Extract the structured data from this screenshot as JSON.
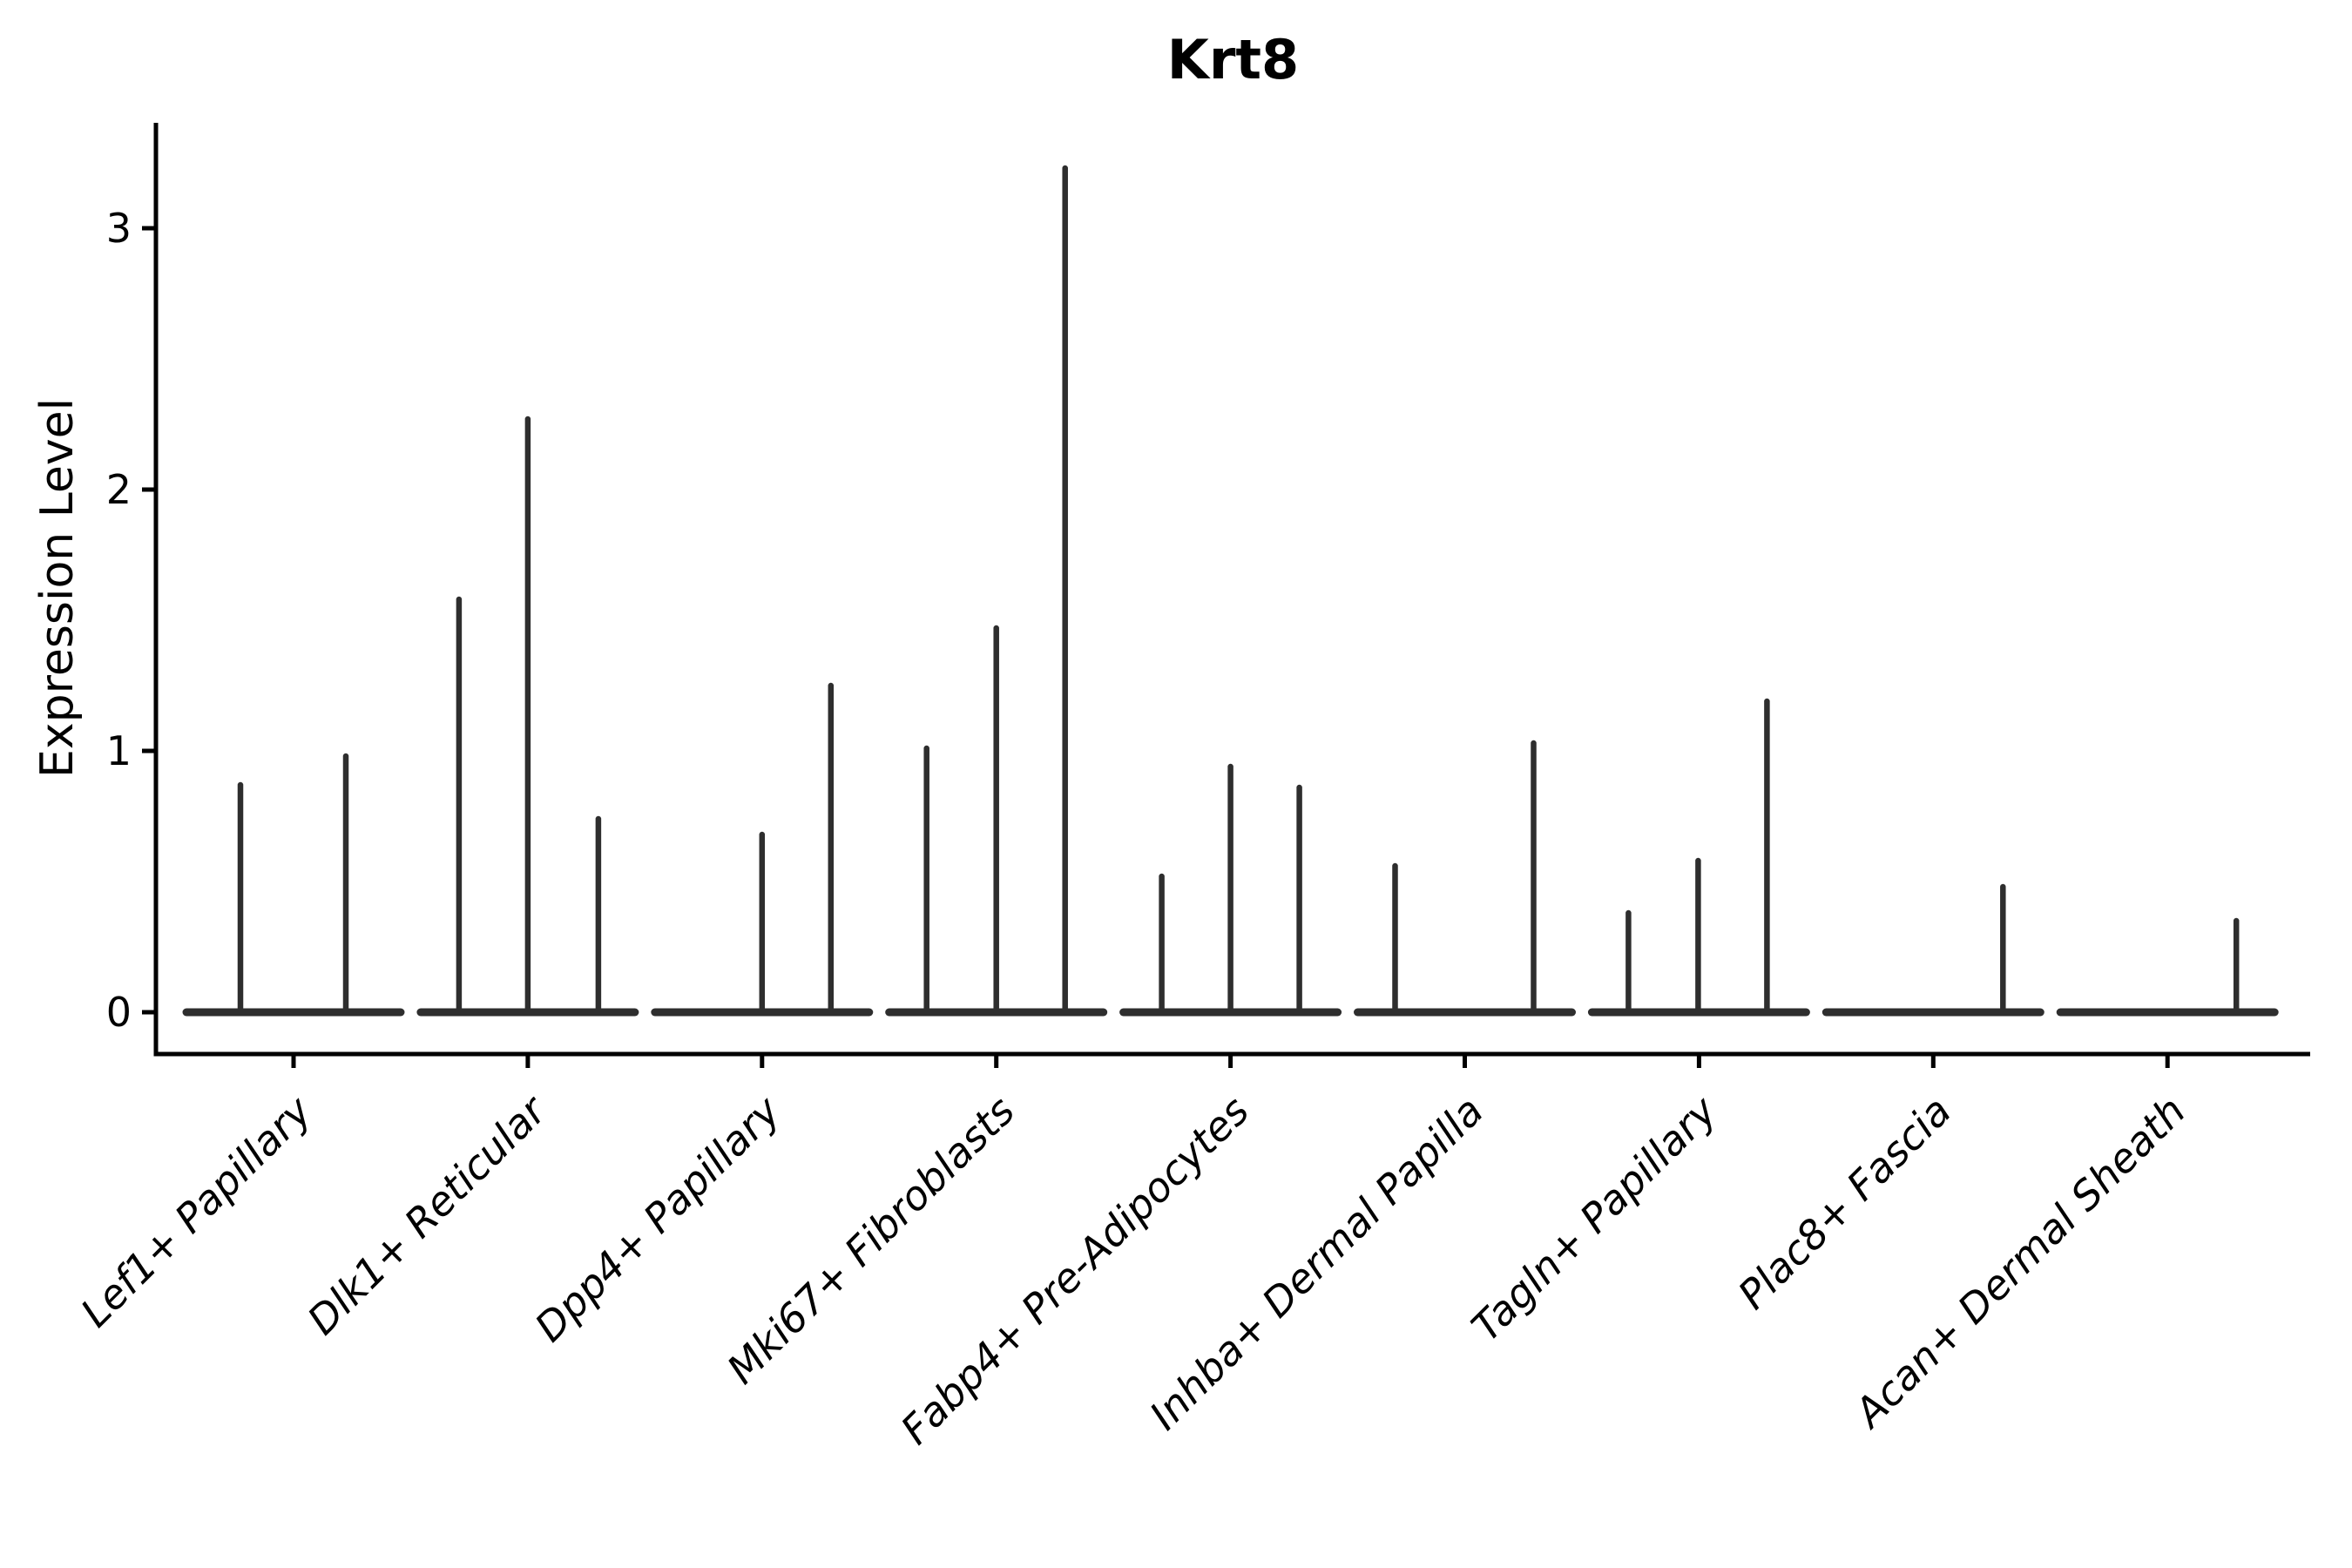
{
  "figure": {
    "background": "#ffffff"
  },
  "chart_data": {
    "type": "violin",
    "title": "Krt8",
    "ylabel": "Expression Level",
    "xlabel": "",
    "yticks": [
      "0",
      "1",
      "2",
      "3"
    ],
    "ylim": [
      -0.16,
      3.4
    ],
    "grid": false,
    "legend": "none",
    "categories": [
      "Lef1+ Papillary",
      "Dlk1+ Reticular",
      "Dpp4+ Papillary",
      "Mki67+ Fibroblasts",
      "Fabp4+ Pre-Adipocytes",
      "Inhba+ Dermal Papilla",
      "Tagln+ Papillary",
      "Plac8+ Fascia",
      "Acan+ Dermal Sheath"
    ],
    "series": [
      {
        "category": "Lef1+ Papillary",
        "spikes": [
          {
            "dx": -61,
            "value": 0.87
          },
          {
            "dx": 60,
            "value": 0.98
          }
        ]
      },
      {
        "category": "Dlk1+ Reticular",
        "spikes": [
          {
            "dx": -79,
            "value": 1.58
          },
          {
            "dx": 0,
            "value": 2.27
          },
          {
            "dx": 81,
            "value": 0.74
          }
        ]
      },
      {
        "category": "Dpp4+ Papillary",
        "spikes": [
          {
            "dx": 0,
            "value": 0.68
          },
          {
            "dx": 79,
            "value": 1.25
          }
        ]
      },
      {
        "category": "Mki67+ Fibroblasts",
        "spikes": [
          {
            "dx": -80,
            "value": 1.01
          },
          {
            "dx": 0,
            "value": 1.47
          },
          {
            "dx": 79,
            "value": 3.23
          }
        ]
      },
      {
        "category": "Fabp4+ Pre-Adipocytes",
        "spikes": [
          {
            "dx": -79,
            "value": 0.52
          },
          {
            "dx": 0,
            "value": 0.94
          },
          {
            "dx": 79,
            "value": 0.86
          }
        ]
      },
      {
        "category": "Inhba+ Dermal Papilla",
        "spikes": [
          {
            "dx": -80,
            "value": 0.56
          },
          {
            "dx": 79,
            "value": 1.03
          }
        ]
      },
      {
        "category": "Tagln+ Papillary",
        "spikes": [
          {
            "dx": -81,
            "value": 0.38
          },
          {
            "dx": -1,
            "value": 0.58
          },
          {
            "dx": 78,
            "value": 1.19
          }
        ]
      },
      {
        "category": "Plac8+ Fascia",
        "spikes": [
          {
            "dx": 80,
            "value": 0.48
          }
        ]
      },
      {
        "category": "Acan+ Dermal Sheath",
        "spikes": [
          {
            "dx": 79,
            "value": 0.35
          }
        ]
      }
    ],
    "baseline_value": 0,
    "colors": {
      "violin": "#2e2e2e",
      "axis": "#000000",
      "text": "#000000"
    }
  }
}
